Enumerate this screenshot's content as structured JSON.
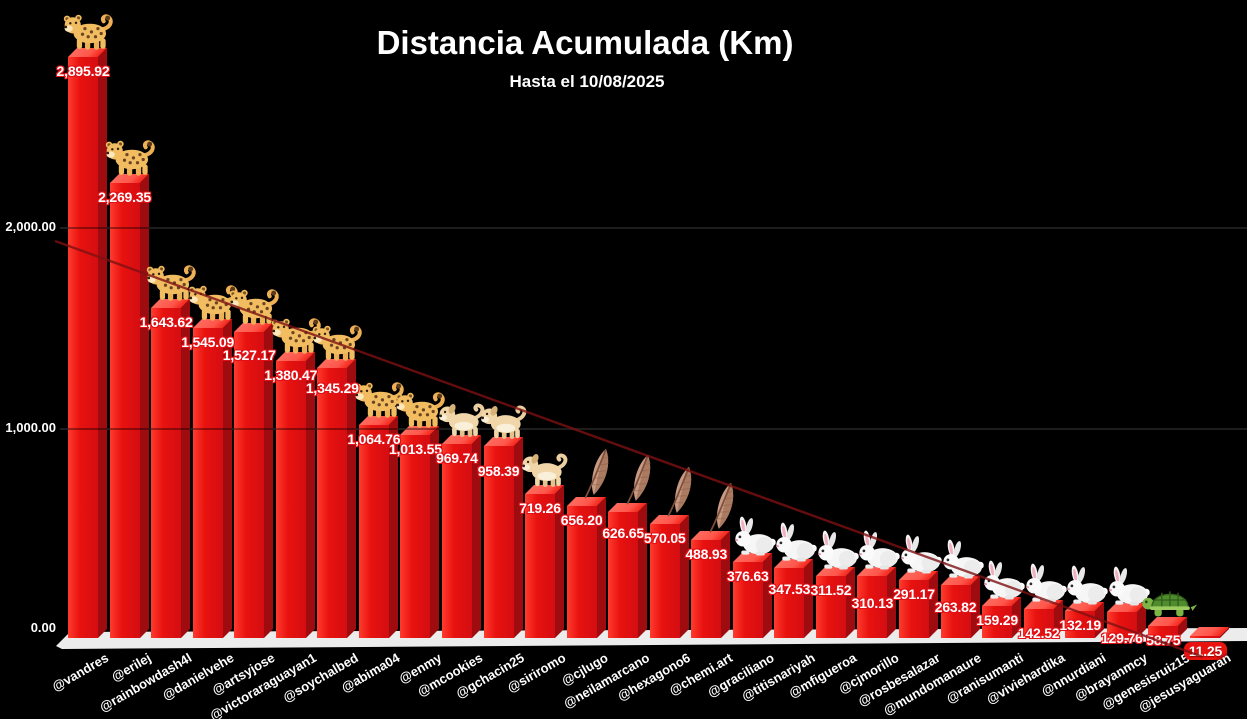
{
  "chart_data": {
    "type": "bar",
    "title": "Distancia Acumulada (Km)",
    "subtitle": "Hasta el 10/08/2025",
    "xlabel": "",
    "ylabel": "",
    "ylim": [
      0,
      3000
    ],
    "grid": true,
    "legend_position": "none",
    "trendline": true,
    "y_ticks": [
      {
        "value": 0,
        "label": "0.00"
      },
      {
        "value": 1000,
        "label": "1,000.00"
      },
      {
        "value": 2000,
        "label": "2,000.00"
      }
    ],
    "categories": [
      "@vandres",
      "@erilej",
      "@rainbowdash4l",
      "@danielvehe",
      "@artsyjose",
      "@victoraraguayan1",
      "@soychalbed",
      "@abima04",
      "@enmy",
      "@mcookies",
      "@gchacin25",
      "@siriromo",
      "@cjlugo",
      "@neilamarcano",
      "@hexagono6",
      "@chemi.art",
      "@graciliano",
      "@titisnariyah",
      "@mfigueroa",
      "@cjmorillo",
      "@rosbesalazar",
      "@mundomanaure",
      "@ranisumanti",
      "@viviehardika",
      "@nnurdiani",
      "@brayanmcy",
      "@genesisruiz15",
      "@jesusyaguaran"
    ],
    "values": [
      2895.92,
      2269.35,
      1643.62,
      1545.09,
      1527.17,
      1380.47,
      1345.29,
      1064.76,
      1013.55,
      969.74,
      958.39,
      719.26,
      656.2,
      626.65,
      570.05,
      488.93,
      376.63,
      347.53,
      311.52,
      310.13,
      291.17,
      263.82,
      159.29,
      142.52,
      132.19,
      129.76,
      58.75,
      11.25
    ],
    "value_labels": [
      "2,895.92",
      "2,269.35",
      "1,643.62",
      "1,545.09",
      "1,527.17",
      "1,380.47",
      "1,345.29",
      "1,064.76",
      "1,013.55",
      "969.74",
      "958.39",
      "719.26",
      "656.20",
      "626.65",
      "570.05",
      "488.93",
      "376.63",
      "347.53",
      "311.52",
      "310.13",
      "291.17",
      "263.82",
      "159.29",
      "142.52",
      "132.19",
      "129.76",
      "58.75",
      "11.25"
    ],
    "icons": [
      "leopard",
      "leopard",
      "leopard",
      "leopard",
      "leopard",
      "leopard",
      "leopard",
      "leopard",
      "leopard",
      "dog",
      "dog",
      "dog",
      "feather",
      "feather",
      "feather",
      "feather",
      "rabbit",
      "rabbit",
      "rabbit",
      "rabbit",
      "rabbit",
      "rabbit",
      "rabbit",
      "rabbit",
      "rabbit",
      "rabbit",
      "turtle",
      "none"
    ],
    "icon_glyphs": {
      "leopard": "🐆",
      "dog": "🐕",
      "feather": "🪶",
      "rabbit": "🐇",
      "turtle": "🐢"
    },
    "colors": {
      "background": "#000000",
      "text": "#ffffff",
      "bar_front": "#e8120f",
      "bar_top": "#ff574c",
      "bar_side": "#9e0c10",
      "value_outline": "#e01015",
      "trendline": "#7e1113",
      "floor": "#ececec",
      "grid": "#303030"
    }
  }
}
